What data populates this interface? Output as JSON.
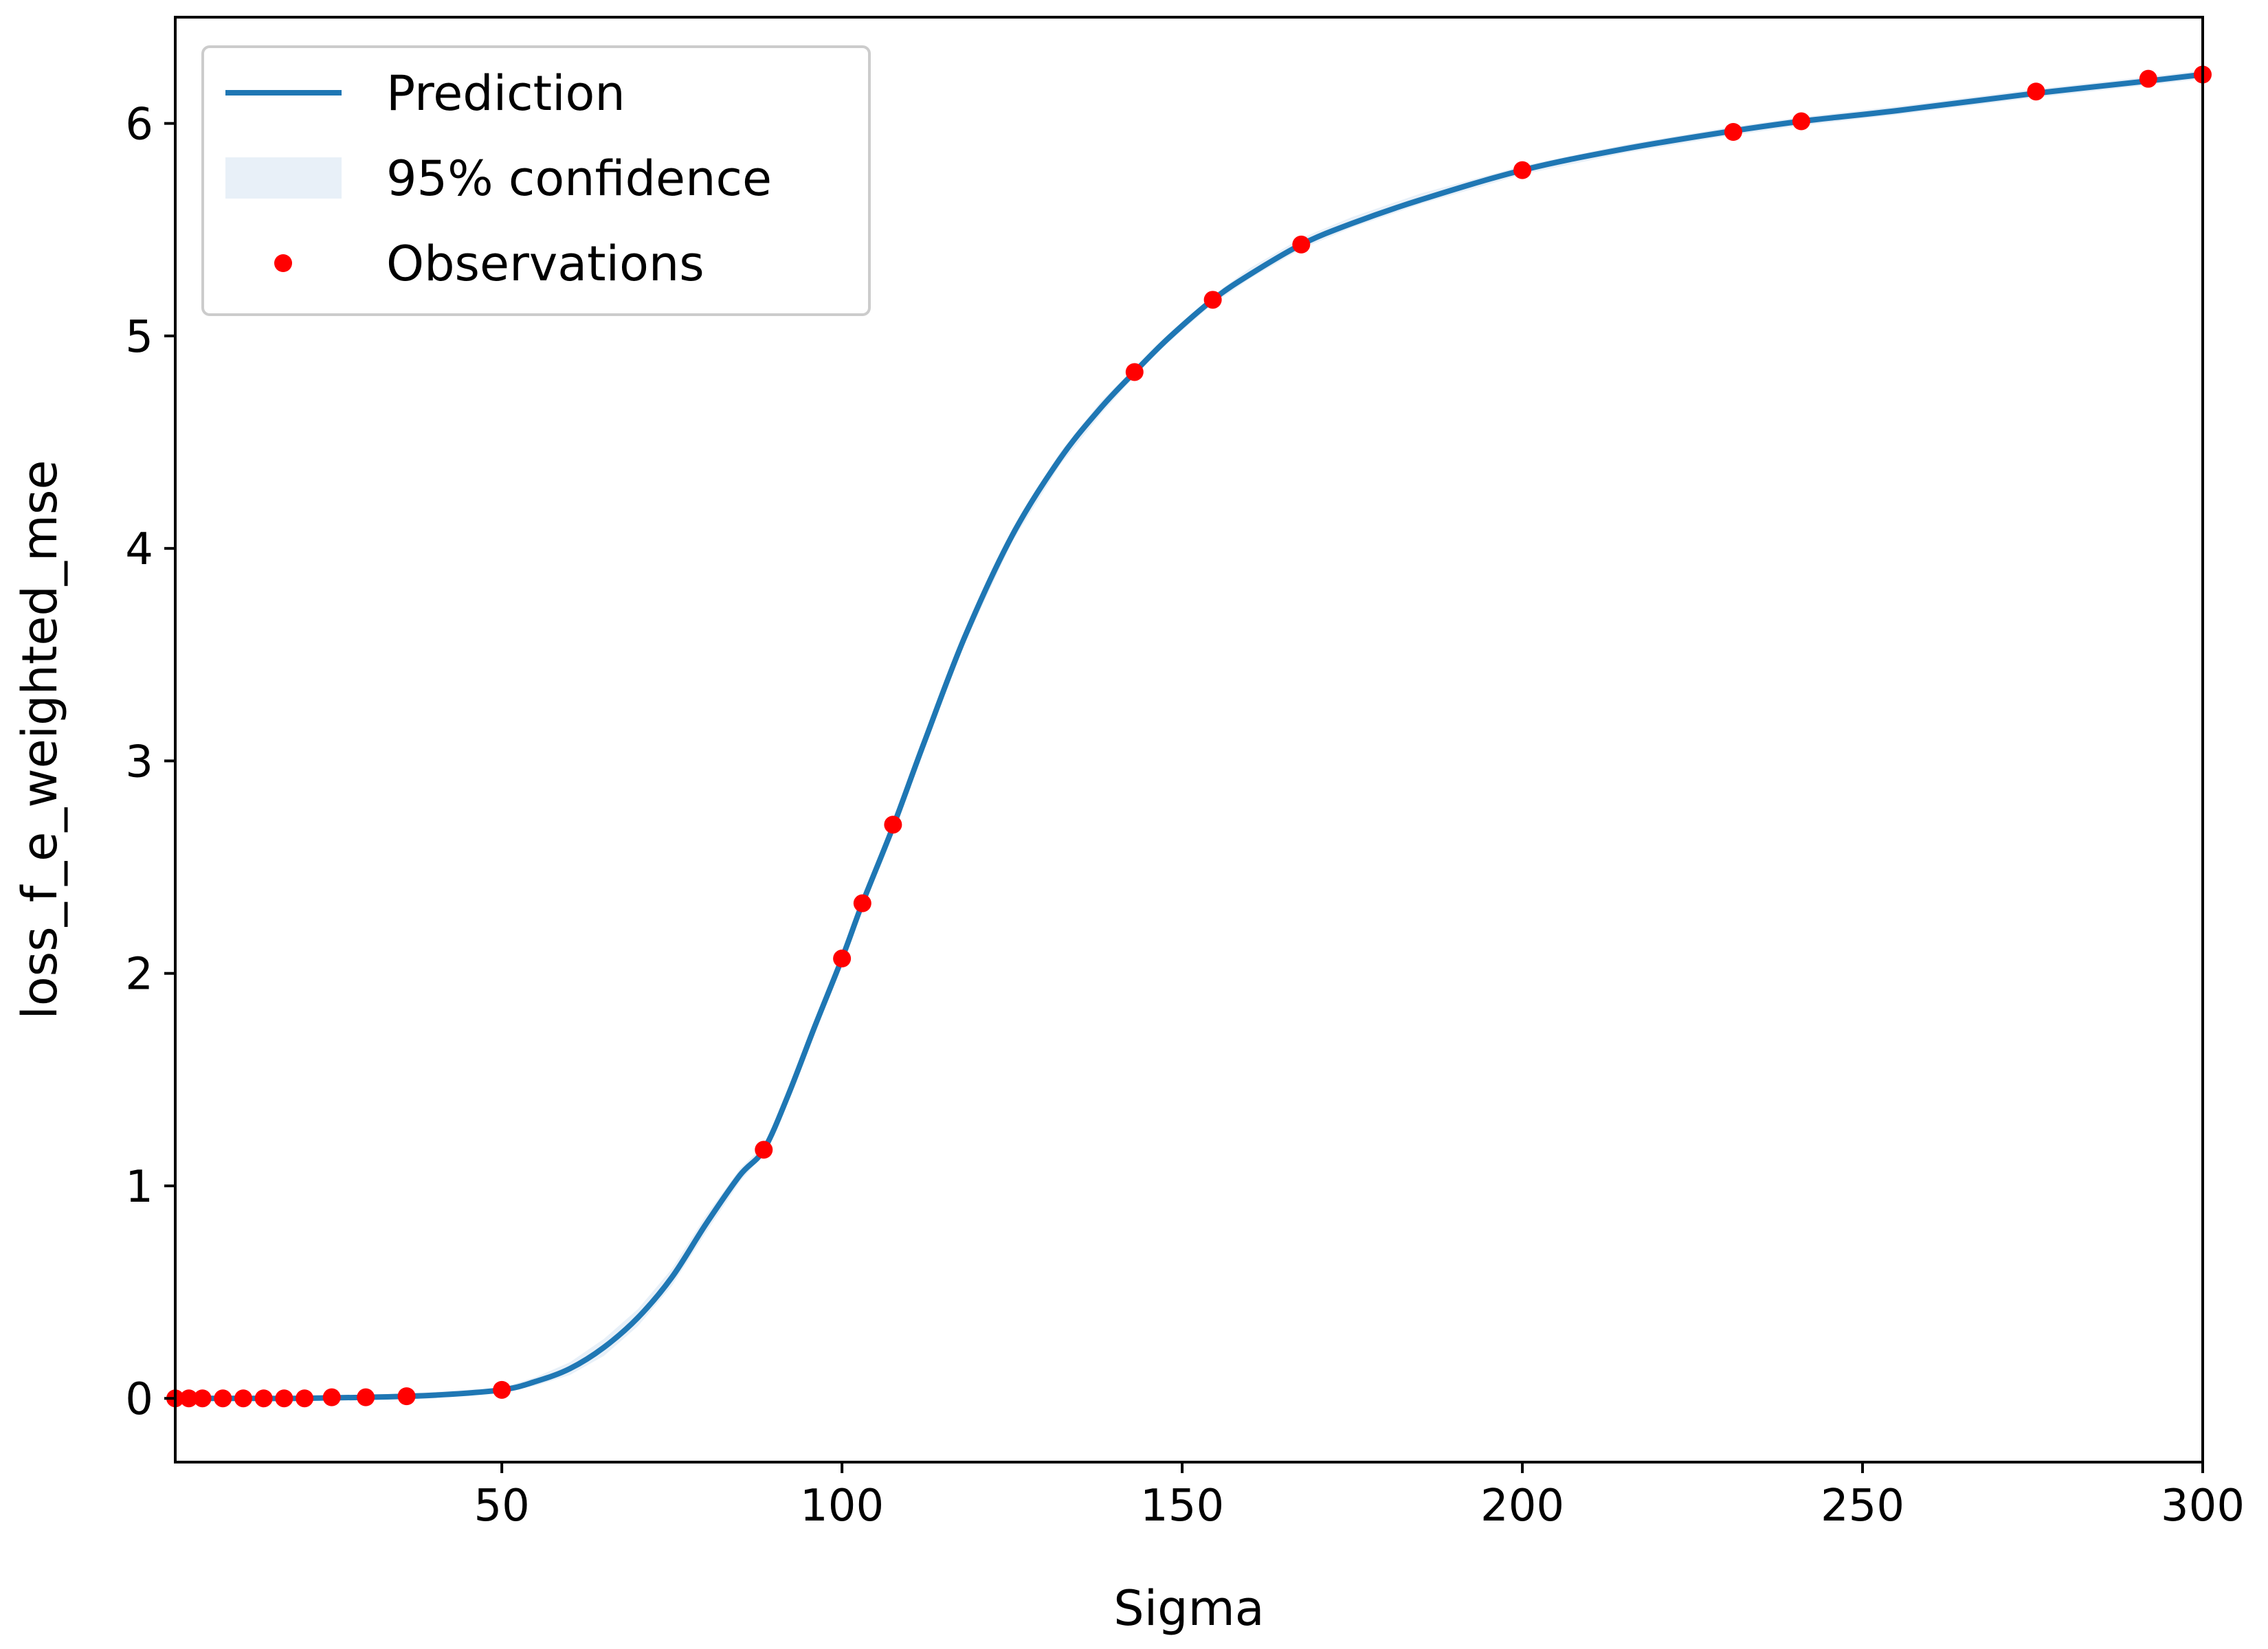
{
  "chart_data": {
    "type": "line",
    "title": "",
    "xlabel": "Sigma",
    "ylabel": "loss_f_e_weighted_mse",
    "xlim": [
      2,
      300
    ],
    "ylim": [
      -0.3,
      6.5
    ],
    "x_ticks": [
      50,
      100,
      150,
      200,
      250,
      300
    ],
    "y_ticks": [
      0,
      1,
      2,
      3,
      4,
      5,
      6
    ],
    "grid": false,
    "legend": {
      "placement": "top-left",
      "entries": [
        {
          "label": "Prediction",
          "kind": "line",
          "color": "#1f77b4"
        },
        {
          "label": "95% confidence",
          "kind": "band",
          "color": "#e8f0f8"
        },
        {
          "label": "Observations",
          "kind": "marker",
          "color": "#ff0000"
        }
      ]
    },
    "series": [
      {
        "name": "Prediction",
        "kind": "line",
        "color": "#1f77b4",
        "x": [
          2,
          10,
          20,
          30,
          40,
          50,
          55,
          60,
          65,
          70,
          75,
          80,
          85,
          88.5,
          92,
          96,
          100,
          103,
          107.5,
          112,
          118,
          125,
          132,
          138,
          143,
          148,
          154.5,
          160,
          167.5,
          175,
          185,
          200,
          215,
          230,
          241,
          255,
          275,
          292,
          300
        ],
        "y": [
          0,
          0,
          0,
          0.005,
          0.015,
          0.04,
          0.08,
          0.14,
          0.24,
          0.38,
          0.57,
          0.82,
          1.05,
          1.17,
          1.42,
          1.75,
          2.07,
          2.33,
          2.69,
          3.08,
          3.58,
          4.06,
          4.42,
          4.66,
          4.83,
          4.99,
          5.17,
          5.29,
          5.43,
          5.53,
          5.64,
          5.78,
          5.88,
          5.96,
          6.01,
          6.06,
          6.14,
          6.2,
          6.23
        ]
      },
      {
        "name": "95% confidence",
        "kind": "band",
        "color": "#e8f0f8",
        "x": [
          2,
          10,
          20,
          30,
          40,
          50,
          55,
          60,
          65,
          70,
          75,
          80,
          85,
          88.5,
          92,
          96,
          100,
          103,
          107.5,
          112,
          118,
          125,
          132,
          138,
          143,
          148,
          154.5,
          160,
          167.5,
          175,
          185,
          200,
          215,
          230,
          241,
          255,
          275,
          292,
          300
        ],
        "lower": [
          -0.01,
          -0.01,
          -0.01,
          -0.005,
          0.0,
          0.03,
          0.06,
          0.11,
          0.2,
          0.34,
          0.53,
          0.78,
          1.02,
          1.15,
          1.4,
          1.73,
          2.05,
          2.31,
          2.67,
          3.05,
          3.55,
          4.03,
          4.39,
          4.63,
          4.81,
          4.97,
          5.15,
          5.27,
          5.41,
          5.51,
          5.62,
          5.76,
          5.86,
          5.94,
          5.99,
          6.04,
          6.12,
          6.18,
          6.21
        ],
        "upper": [
          0.01,
          0.01,
          0.01,
          0.015,
          0.03,
          0.05,
          0.1,
          0.17,
          0.28,
          0.42,
          0.61,
          0.86,
          1.08,
          1.19,
          1.44,
          1.77,
          2.09,
          2.35,
          2.71,
          3.11,
          3.61,
          4.09,
          4.45,
          4.69,
          4.85,
          5.01,
          5.19,
          5.32,
          5.46,
          5.56,
          5.67,
          5.8,
          5.9,
          5.98,
          6.03,
          6.08,
          6.16,
          6.22,
          6.25
        ]
      },
      {
        "name": "Observations",
        "kind": "scatter",
        "color": "#ff0000",
        "x": [
          2,
          4,
          6,
          9,
          12,
          15,
          18,
          21,
          25,
          30,
          36,
          50,
          88.5,
          100,
          103,
          107.5,
          143,
          154.5,
          167.5,
          200,
          231,
          241,
          275.5,
          292,
          300
        ],
        "y": [
          0,
          0,
          0,
          0,
          0,
          0,
          0,
          0,
          0.005,
          0.005,
          0.01,
          0.04,
          1.17,
          2.07,
          2.33,
          2.7,
          4.83,
          5.17,
          5.43,
          5.78,
          5.96,
          6.01,
          6.15,
          6.21,
          6.23
        ]
      }
    ]
  }
}
